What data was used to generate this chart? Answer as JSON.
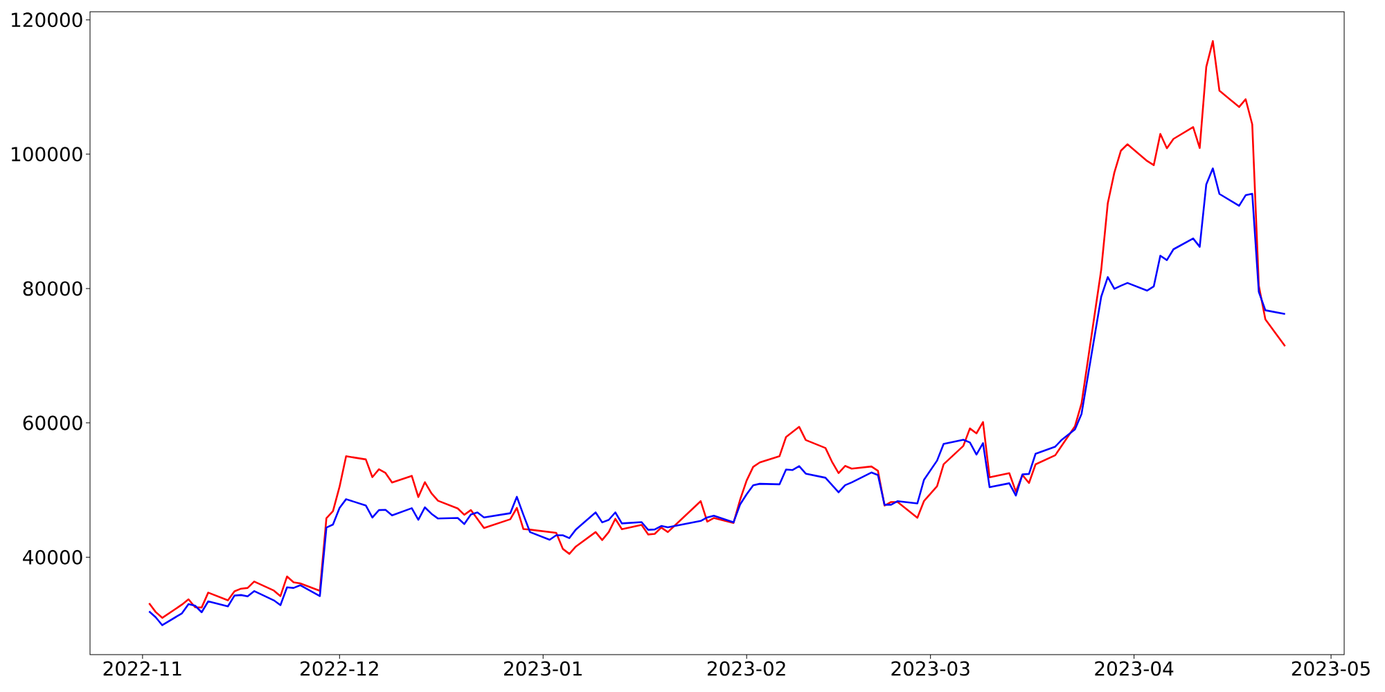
{
  "chart_data": {
    "type": "line",
    "xlim": [
      "2022-10-24",
      "2023-05-03"
    ],
    "xticks": [
      {
        "value": "2022-11-01",
        "label": "2022-11"
      },
      {
        "value": "2022-12-01",
        "label": "2022-12"
      },
      {
        "value": "2023-01-01",
        "label": "2023-01"
      },
      {
        "value": "2023-02-01",
        "label": "2023-02"
      },
      {
        "value": "2023-03-01",
        "label": "2023-03"
      },
      {
        "value": "2023-04-01",
        "label": "2023-04"
      },
      {
        "value": "2023-05-01",
        "label": "2023-05"
      }
    ],
    "ylim": [
      25500,
      121200
    ],
    "yticks": [
      40000,
      60000,
      80000,
      100000,
      120000
    ],
    "series": [
      {
        "color": "#ff0000",
        "x": [
          "2022-11-02",
          "2022-11-03",
          "2022-11-04",
          "2022-11-07",
          "2022-11-08",
          "2022-11-09",
          "2022-11-10",
          "2022-11-11",
          "2022-11-14",
          "2022-11-15",
          "2022-11-16",
          "2022-11-17",
          "2022-11-18",
          "2022-11-21",
          "2022-11-22",
          "2022-11-23",
          "2022-11-24",
          "2022-11-25",
          "2022-11-28",
          "2022-11-29",
          "2022-11-30",
          "2022-12-01",
          "2022-12-02",
          "2022-12-05",
          "2022-12-06",
          "2022-12-07",
          "2022-12-08",
          "2022-12-09",
          "2022-12-12",
          "2022-12-13",
          "2022-12-14",
          "2022-12-15",
          "2022-12-16",
          "2022-12-19",
          "2022-12-20",
          "2022-12-21",
          "2022-12-22",
          "2022-12-23",
          "2022-12-27",
          "2022-12-28",
          "2022-12-29",
          "2022-12-30",
          "2023-01-03",
          "2023-01-04",
          "2023-01-05",
          "2023-01-06",
          "2023-01-09",
          "2023-01-10",
          "2023-01-11",
          "2023-01-12",
          "2023-01-13",
          "2023-01-16",
          "2023-01-17",
          "2023-01-18",
          "2023-01-19",
          "2023-01-20",
          "2023-01-25",
          "2023-01-26",
          "2023-01-27",
          "2023-01-30",
          "2023-01-31",
          "2023-02-01",
          "2023-02-02",
          "2023-02-03",
          "2023-02-06",
          "2023-02-07",
          "2023-02-09",
          "2023-02-10",
          "2023-02-13",
          "2023-02-14",
          "2023-02-15",
          "2023-02-16",
          "2023-02-17",
          "2023-02-20",
          "2023-02-21",
          "2023-02-22",
          "2023-02-23",
          "2023-02-24",
          "2023-02-27",
          "2023-02-28",
          "2023-03-02",
          "2023-03-03",
          "2023-03-06",
          "2023-03-07",
          "2023-03-08",
          "2023-03-09",
          "2023-03-10",
          "2023-03-13",
          "2023-03-14",
          "2023-03-15",
          "2023-03-16",
          "2023-03-17",
          "2023-03-20",
          "2023-03-23",
          "2023-03-24",
          "2023-03-27",
          "2023-03-28",
          "2023-03-29",
          "2023-03-30",
          "2023-03-31",
          "2023-04-03",
          "2023-04-04",
          "2023-04-05",
          "2023-04-06",
          "2023-04-07",
          "2023-04-10",
          "2023-04-11",
          "2023-04-12",
          "2023-04-13",
          "2023-04-14",
          "2023-04-17",
          "2023-04-18",
          "2023-04-19",
          "2023-04-20",
          "2023-04-21",
          "2023-04-24"
        ],
        "values": [
          33150,
          31850,
          30980,
          32950,
          33740,
          32560,
          32520,
          34730,
          33580,
          34920,
          35320,
          35430,
          36380,
          35040,
          34210,
          37130,
          36270,
          36110,
          35000,
          45800,
          46870,
          50490,
          55030,
          54560,
          51920,
          53100,
          52550,
          51130,
          52110,
          48960,
          51170,
          49510,
          48410,
          47260,
          46320,
          47020,
          45690,
          44350,
          45650,
          47340,
          44190,
          44110,
          43630,
          41250,
          40500,
          41600,
          43750,
          42560,
          43750,
          45720,
          44170,
          44820,
          43390,
          43470,
          44420,
          43750,
          48350,
          45300,
          45840,
          45110,
          48550,
          51420,
          53460,
          54110,
          55030,
          57900,
          59410,
          57450,
          56260,
          54210,
          52520,
          53590,
          53190,
          53510,
          52860,
          47690,
          48220,
          48220,
          45880,
          48350,
          50560,
          53840,
          56570,
          59170,
          58440,
          60120,
          51890,
          52510,
          49770,
          52250,
          51050,
          53830,
          55180,
          59500,
          62870,
          82800,
          92690,
          97260,
          100520,
          101470,
          98980,
          98360,
          103010,
          100880,
          102270,
          104030,
          100920,
          113000,
          116840,
          109450,
          107030,
          108170,
          104430,
          80430,
          75410,
          71420
        ]
      },
      {
        "color": "#0000ff",
        "x": [
          "2022-11-02",
          "2022-11-03",
          "2022-11-04",
          "2022-11-07",
          "2022-11-08",
          "2022-11-09",
          "2022-11-10",
          "2022-11-11",
          "2022-11-14",
          "2022-11-15",
          "2022-11-16",
          "2022-11-17",
          "2022-11-18",
          "2022-11-21",
          "2022-11-22",
          "2022-11-23",
          "2022-11-24",
          "2022-11-25",
          "2022-11-28",
          "2022-11-29",
          "2022-11-30",
          "2022-12-01",
          "2022-12-02",
          "2022-12-05",
          "2022-12-06",
          "2022-12-07",
          "2022-12-08",
          "2022-12-09",
          "2022-12-12",
          "2022-12-13",
          "2022-12-14",
          "2022-12-15",
          "2022-12-16",
          "2022-12-19",
          "2022-12-20",
          "2022-12-21",
          "2022-12-22",
          "2022-12-23",
          "2022-12-27",
          "2022-12-28",
          "2022-12-29",
          "2022-12-30",
          "2023-01-02",
          "2023-01-03",
          "2023-01-04",
          "2023-01-05",
          "2023-01-06",
          "2023-01-09",
          "2023-01-10",
          "2023-01-11",
          "2023-01-12",
          "2023-01-13",
          "2023-01-16",
          "2023-01-17",
          "2023-01-18",
          "2023-01-19",
          "2023-01-20",
          "2023-01-25",
          "2023-01-26",
          "2023-01-27",
          "2023-01-30",
          "2023-01-31",
          "2023-02-01",
          "2023-02-02",
          "2023-02-03",
          "2023-02-06",
          "2023-02-07",
          "2023-02-08",
          "2023-02-09",
          "2023-02-10",
          "2023-02-13",
          "2023-02-15",
          "2023-02-16",
          "2023-02-17",
          "2023-02-20",
          "2023-02-21",
          "2023-02-22",
          "2023-02-23",
          "2023-02-24",
          "2023-02-27",
          "2023-02-28",
          "2023-03-02",
          "2023-03-03",
          "2023-03-06",
          "2023-03-07",
          "2023-03-08",
          "2023-03-09",
          "2023-03-10",
          "2023-03-13",
          "2023-03-14",
          "2023-03-15",
          "2023-03-16",
          "2023-03-17",
          "2023-03-20",
          "2023-03-21",
          "2023-03-23",
          "2023-03-24",
          "2023-03-27",
          "2023-03-28",
          "2023-03-29",
          "2023-03-30",
          "2023-03-31",
          "2023-04-03",
          "2023-04-04",
          "2023-04-05",
          "2023-04-06",
          "2023-04-07",
          "2023-04-10",
          "2023-04-11",
          "2023-04-12",
          "2023-04-13",
          "2023-04-14",
          "2023-04-17",
          "2023-04-18",
          "2023-04-19",
          "2023-04-20",
          "2023-04-21",
          "2023-04-24"
        ],
        "values": [
          31930,
          31060,
          29880,
          31650,
          33030,
          32790,
          31810,
          33430,
          32680,
          34290,
          34370,
          34170,
          34960,
          33580,
          32870,
          35510,
          35430,
          35830,
          34210,
          44420,
          44860,
          47340,
          48640,
          47700,
          45920,
          47020,
          47060,
          46240,
          47300,
          45570,
          47420,
          46470,
          45760,
          45840,
          44940,
          46360,
          46670,
          45920,
          46550,
          48990,
          46320,
          43750,
          42600,
          43270,
          43270,
          42850,
          44130,
          46670,
          45190,
          45560,
          46670,
          45030,
          45230,
          44080,
          44130,
          44650,
          44460,
          45400,
          45930,
          46170,
          45190,
          47860,
          49370,
          50720,
          50930,
          50850,
          53060,
          52980,
          53550,
          52440,
          51830,
          49660,
          50720,
          51140,
          52610,
          52230,
          47810,
          47810,
          48350,
          48010,
          51500,
          54380,
          56870,
          57490,
          57090,
          55290,
          56980,
          50420,
          51010,
          49180,
          52330,
          52400,
          55400,
          56460,
          57490,
          59020,
          61330,
          78780,
          81700,
          79950,
          80420,
          80830,
          79690,
          80310,
          84890,
          84230,
          85840,
          87450,
          86210,
          95500,
          97880,
          94080,
          92320,
          93890,
          94110,
          79510,
          76760,
          76210
        ]
      }
    ]
  }
}
